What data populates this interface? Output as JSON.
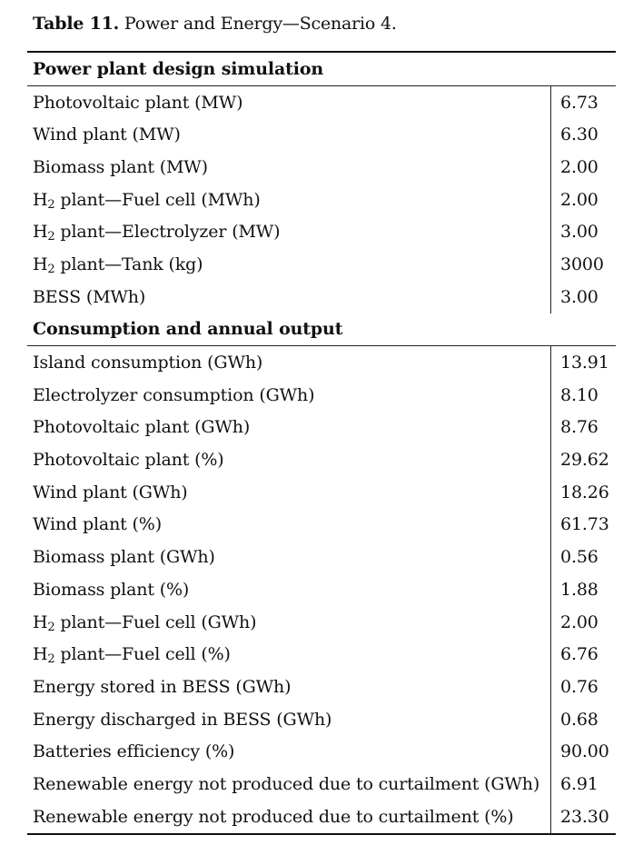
{
  "caption": {
    "label": "Table 11.",
    "text": " Power and Energy—Scenario 4."
  },
  "design": {
    "heading": "Power plant design simulation",
    "rows": [
      {
        "pre": "Photovoltaic plant (MW)",
        "sub": "",
        "post": "",
        "value": "6.73"
      },
      {
        "pre": "Wind plant (MW)",
        "sub": "",
        "post": "",
        "value": "6.30"
      },
      {
        "pre": "Biomass plant (MW)",
        "sub": "",
        "post": "",
        "value": "2.00"
      },
      {
        "pre": "H",
        "sub": "2",
        "post": " plant—Fuel cell (MWh)",
        "value": "2.00"
      },
      {
        "pre": "H",
        "sub": "2",
        "post": " plant—Electrolyzer (MW)",
        "value": "3.00"
      },
      {
        "pre": "H",
        "sub": "2",
        "post": " plant—Tank (kg)",
        "value": "3000"
      },
      {
        "pre": "BESS (MWh)",
        "sub": "",
        "post": "",
        "value": "3.00"
      }
    ]
  },
  "output": {
    "heading": "Consumption and annual output",
    "rows": [
      {
        "pre": "Island consumption (GWh)",
        "sub": "",
        "post": "",
        "value": "13.91"
      },
      {
        "pre": "Electrolyzer consumption (GWh)",
        "sub": "",
        "post": "",
        "value": "8.10"
      },
      {
        "pre": "Photovoltaic plant (GWh)",
        "sub": "",
        "post": "",
        "value": "8.76"
      },
      {
        "pre": "Photovoltaic plant (%)",
        "sub": "",
        "post": "",
        "value": "29.62"
      },
      {
        "pre": "Wind plant (GWh)",
        "sub": "",
        "post": "",
        "value": "18.26"
      },
      {
        "pre": "Wind plant (%)",
        "sub": "",
        "post": "",
        "value": "61.73"
      },
      {
        "pre": "Biomass plant (GWh)",
        "sub": "",
        "post": "",
        "value": "0.56"
      },
      {
        "pre": "Biomass plant (%)",
        "sub": "",
        "post": "",
        "value": "1.88"
      },
      {
        "pre": "H",
        "sub": "2",
        "post": " plant—Fuel cell (GWh)",
        "value": "2.00"
      },
      {
        "pre": "H",
        "sub": "2",
        "post": " plant—Fuel cell (%)",
        "value": "6.76"
      },
      {
        "pre": "Energy stored in BESS (GWh)",
        "sub": "",
        "post": "",
        "value": "0.76"
      },
      {
        "pre": "Energy discharged in BESS (GWh)",
        "sub": "",
        "post": "",
        "value": "0.68"
      },
      {
        "pre": "Batteries efficiency (%)",
        "sub": "",
        "post": "",
        "value": "90.00"
      },
      {
        "pre": "Renewable energy not produced due to curtailment (GWh)",
        "sub": "",
        "post": "",
        "value": "6.91"
      },
      {
        "pre": "Renewable energy not produced due to curtailment (%)",
        "sub": "",
        "post": "",
        "value": "23.30"
      }
    ]
  }
}
